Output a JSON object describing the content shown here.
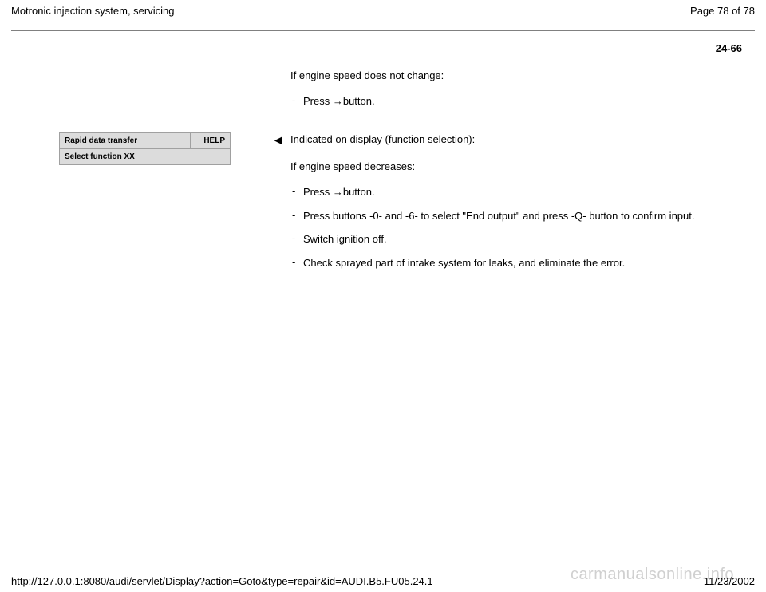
{
  "header": {
    "title": "Motronic injection system, servicing",
    "page_position": "Page 78 of 78"
  },
  "page_number_label": "24-66",
  "section1": {
    "intro": "If engine speed does not change:",
    "items": [
      {
        "prefix": "- ",
        "text": "Press ",
        "arrow": "→",
        "suffix": "button."
      }
    ]
  },
  "display_panel": {
    "line1_left": "Rapid data transfer",
    "line1_right": "HELP",
    "line2": "Select function XX"
  },
  "indicator_arrow": "◂",
  "section2": {
    "intro": "Indicated on display (function selection):",
    "sub": "If engine speed decreases:",
    "items": [
      {
        "prefix": "- ",
        "text": "Press ",
        "arrow": "→",
        "suffix": "button."
      },
      {
        "prefix": "- ",
        "text": "Press buttons -0- and -6- to select \"End output\" and press -Q- button to confirm input."
      },
      {
        "prefix": "- ",
        "text": "Switch ignition off."
      },
      {
        "prefix": "- ",
        "text": "Check sprayed part of intake system for leaks, and eliminate the error."
      }
    ]
  },
  "footer": {
    "url": "http://127.0.0.1:8080/audi/servlet/Display?action=Goto&type=repair&id=AUDI.B5.FU05.24.1",
    "date": "11/23/2002"
  },
  "watermark": "carmanualsonline.info"
}
